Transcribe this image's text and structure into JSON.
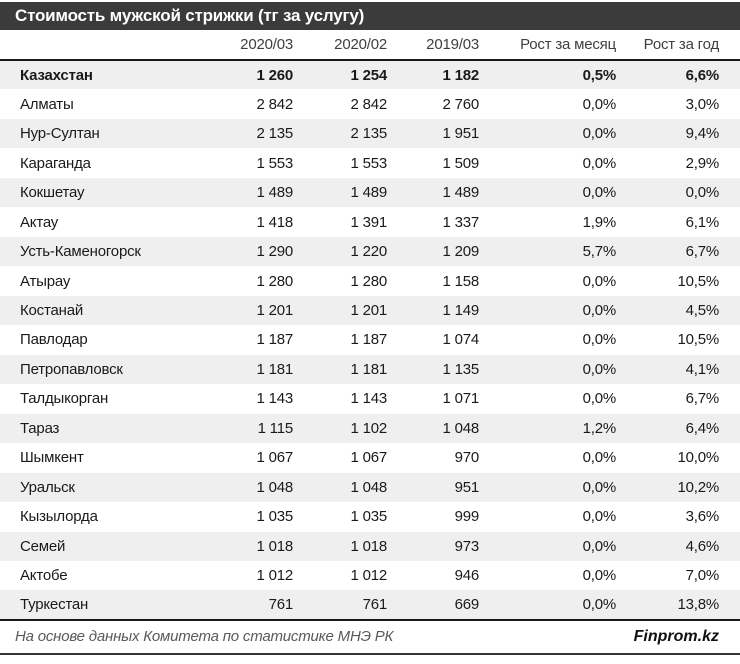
{
  "title": "Стоимость мужской стрижки (тг за услугу)",
  "chart_data": {
    "type": "table",
    "title": "Стоимость мужской стрижки (тг за услугу)",
    "columns": [
      "2020/03",
      "2020/02",
      "2019/03",
      "Рост за месяц",
      "Рост за год"
    ],
    "rows": [
      [
        "Казахстан",
        "1 260",
        "1 254",
        "1 182",
        "0,5%",
        "6,6%"
      ],
      [
        "Алматы",
        "2 842",
        "2 842",
        "2 760",
        "0,0%",
        "3,0%"
      ],
      [
        "Нур-Султан",
        "2 135",
        "2 135",
        "1 951",
        "0,0%",
        "9,4%"
      ],
      [
        "Караганда",
        "1 553",
        "1 553",
        "1 509",
        "0,0%",
        "2,9%"
      ],
      [
        "Кокшетау",
        "1 489",
        "1 489",
        "1 489",
        "0,0%",
        "0,0%"
      ],
      [
        "Актау",
        "1 418",
        "1 391",
        "1 337",
        "1,9%",
        "6,1%"
      ],
      [
        "Усть-Каменогорск",
        "1 290",
        "1 220",
        "1 209",
        "5,7%",
        "6,7%"
      ],
      [
        "Атырау",
        "1 280",
        "1 280",
        "1 158",
        "0,0%",
        "10,5%"
      ],
      [
        "Костанай",
        "1 201",
        "1 201",
        "1 149",
        "0,0%",
        "4,5%"
      ],
      [
        "Павлодар",
        "1 187",
        "1 187",
        "1 074",
        "0,0%",
        "10,5%"
      ],
      [
        "Петропавловск",
        "1 181",
        "1 181",
        "1 135",
        "0,0%",
        "4,1%"
      ],
      [
        "Талдыкорган",
        "1 143",
        "1 143",
        "1 071",
        "0,0%",
        "6,7%"
      ],
      [
        "Тараз",
        "1 115",
        "1 102",
        "1 048",
        "1,2%",
        "6,4%"
      ],
      [
        "Шымкент",
        "1 067",
        "1 067",
        "970",
        "0,0%",
        "10,0%"
      ],
      [
        "Уральск",
        "1 048",
        "1 048",
        "951",
        "0,0%",
        "10,2%"
      ],
      [
        "Кызылорда",
        "1 035",
        "1 035",
        "999",
        "0,0%",
        "3,6%"
      ],
      [
        "Семей",
        "1 018",
        "1 018",
        "973",
        "0,0%",
        "4,6%"
      ],
      [
        "Актобе",
        "1 012",
        "1 012",
        "946",
        "0,0%",
        "7,0%"
      ],
      [
        "Туркестан",
        "761",
        "761",
        "669",
        "0,0%",
        "13,8%"
      ]
    ]
  },
  "footer": {
    "source": "На основе данных Комитета по статистике МНЭ РК",
    "brand": "Finprom.kz"
  },
  "colors": {
    "title_bg": "#3b3b3b",
    "title_text": "#ffffff",
    "stripe": "#efefef",
    "border": "#1a1a1a",
    "header_text": "#3f3f3f",
    "source_text": "#595959"
  }
}
